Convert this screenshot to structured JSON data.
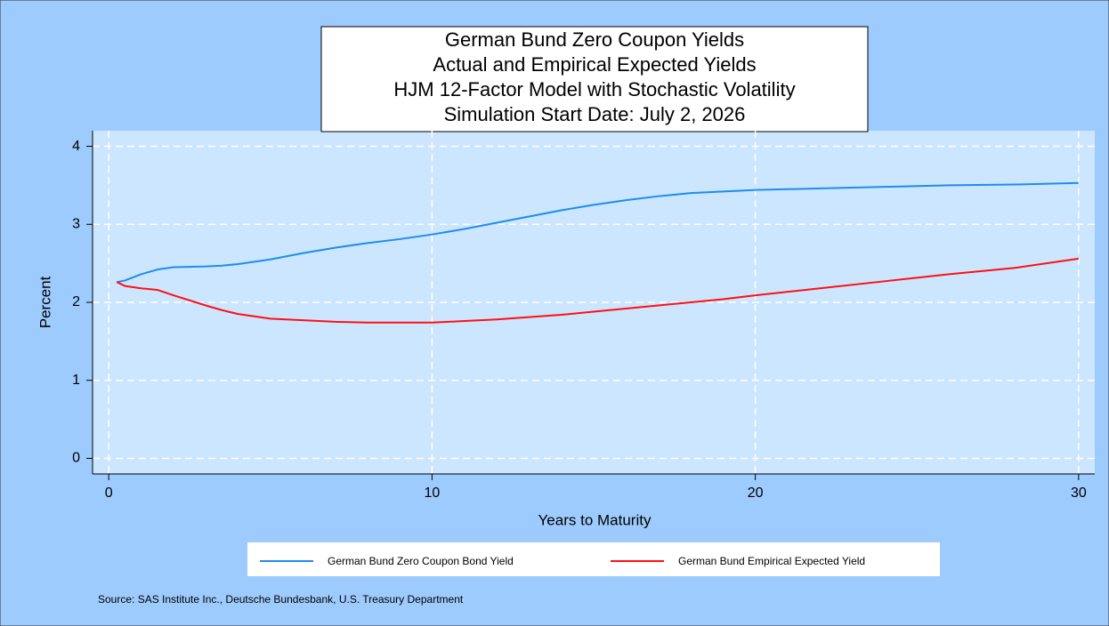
{
  "chart_data": {
    "type": "line",
    "title": [
      "German Bund Zero Coupon Yields",
      "Actual and Empirical Expected Yields",
      "HJM 12-Factor Model with Stochastic Volatility",
      "Simulation Start Date: July 2, 2026"
    ],
    "x_label": "Years to Maturity",
    "y_label": "Percent",
    "source": "Source: SAS Institute Inc., Deutsche Bundesbank, U.S. Treasury Department",
    "x": [
      0.25,
      0.5,
      1,
      1.5,
      2,
      3,
      3.5,
      4,
      5,
      6,
      7,
      8,
      9,
      10,
      11,
      12,
      13,
      14,
      15,
      16,
      17,
      18,
      19,
      20,
      22,
      24,
      26,
      28,
      30
    ],
    "series": [
      {
        "name": "German Bund Zero Coupon Bond Yield",
        "color": "#1e8cf0",
        "values": [
          2.26,
          2.28,
          2.36,
          2.42,
          2.45,
          2.46,
          2.47,
          2.49,
          2.55,
          2.63,
          2.7,
          2.76,
          2.81,
          2.87,
          2.94,
          3.02,
          3.1,
          3.18,
          3.25,
          3.31,
          3.36,
          3.4,
          3.42,
          3.44,
          3.46,
          3.48,
          3.5,
          3.51,
          3.53
        ]
      },
      {
        "name": "German Bund Empirical Expected Yield",
        "color": "#ff1010",
        "values": [
          2.26,
          2.21,
          2.18,
          2.16,
          2.09,
          1.96,
          1.9,
          1.85,
          1.79,
          1.77,
          1.75,
          1.74,
          1.74,
          1.74,
          1.76,
          1.78,
          1.81,
          1.84,
          1.88,
          1.92,
          1.96,
          2.0,
          2.04,
          2.09,
          2.18,
          2.27,
          2.36,
          2.44,
          2.56
        ]
      }
    ],
    "xlim": [
      -0.5,
      30.5
    ],
    "ylim": [
      -0.2,
      4.2
    ],
    "xticks": [
      0,
      10,
      20,
      30
    ],
    "yticks": [
      0,
      1,
      2,
      3,
      4
    ],
    "grid": true
  }
}
